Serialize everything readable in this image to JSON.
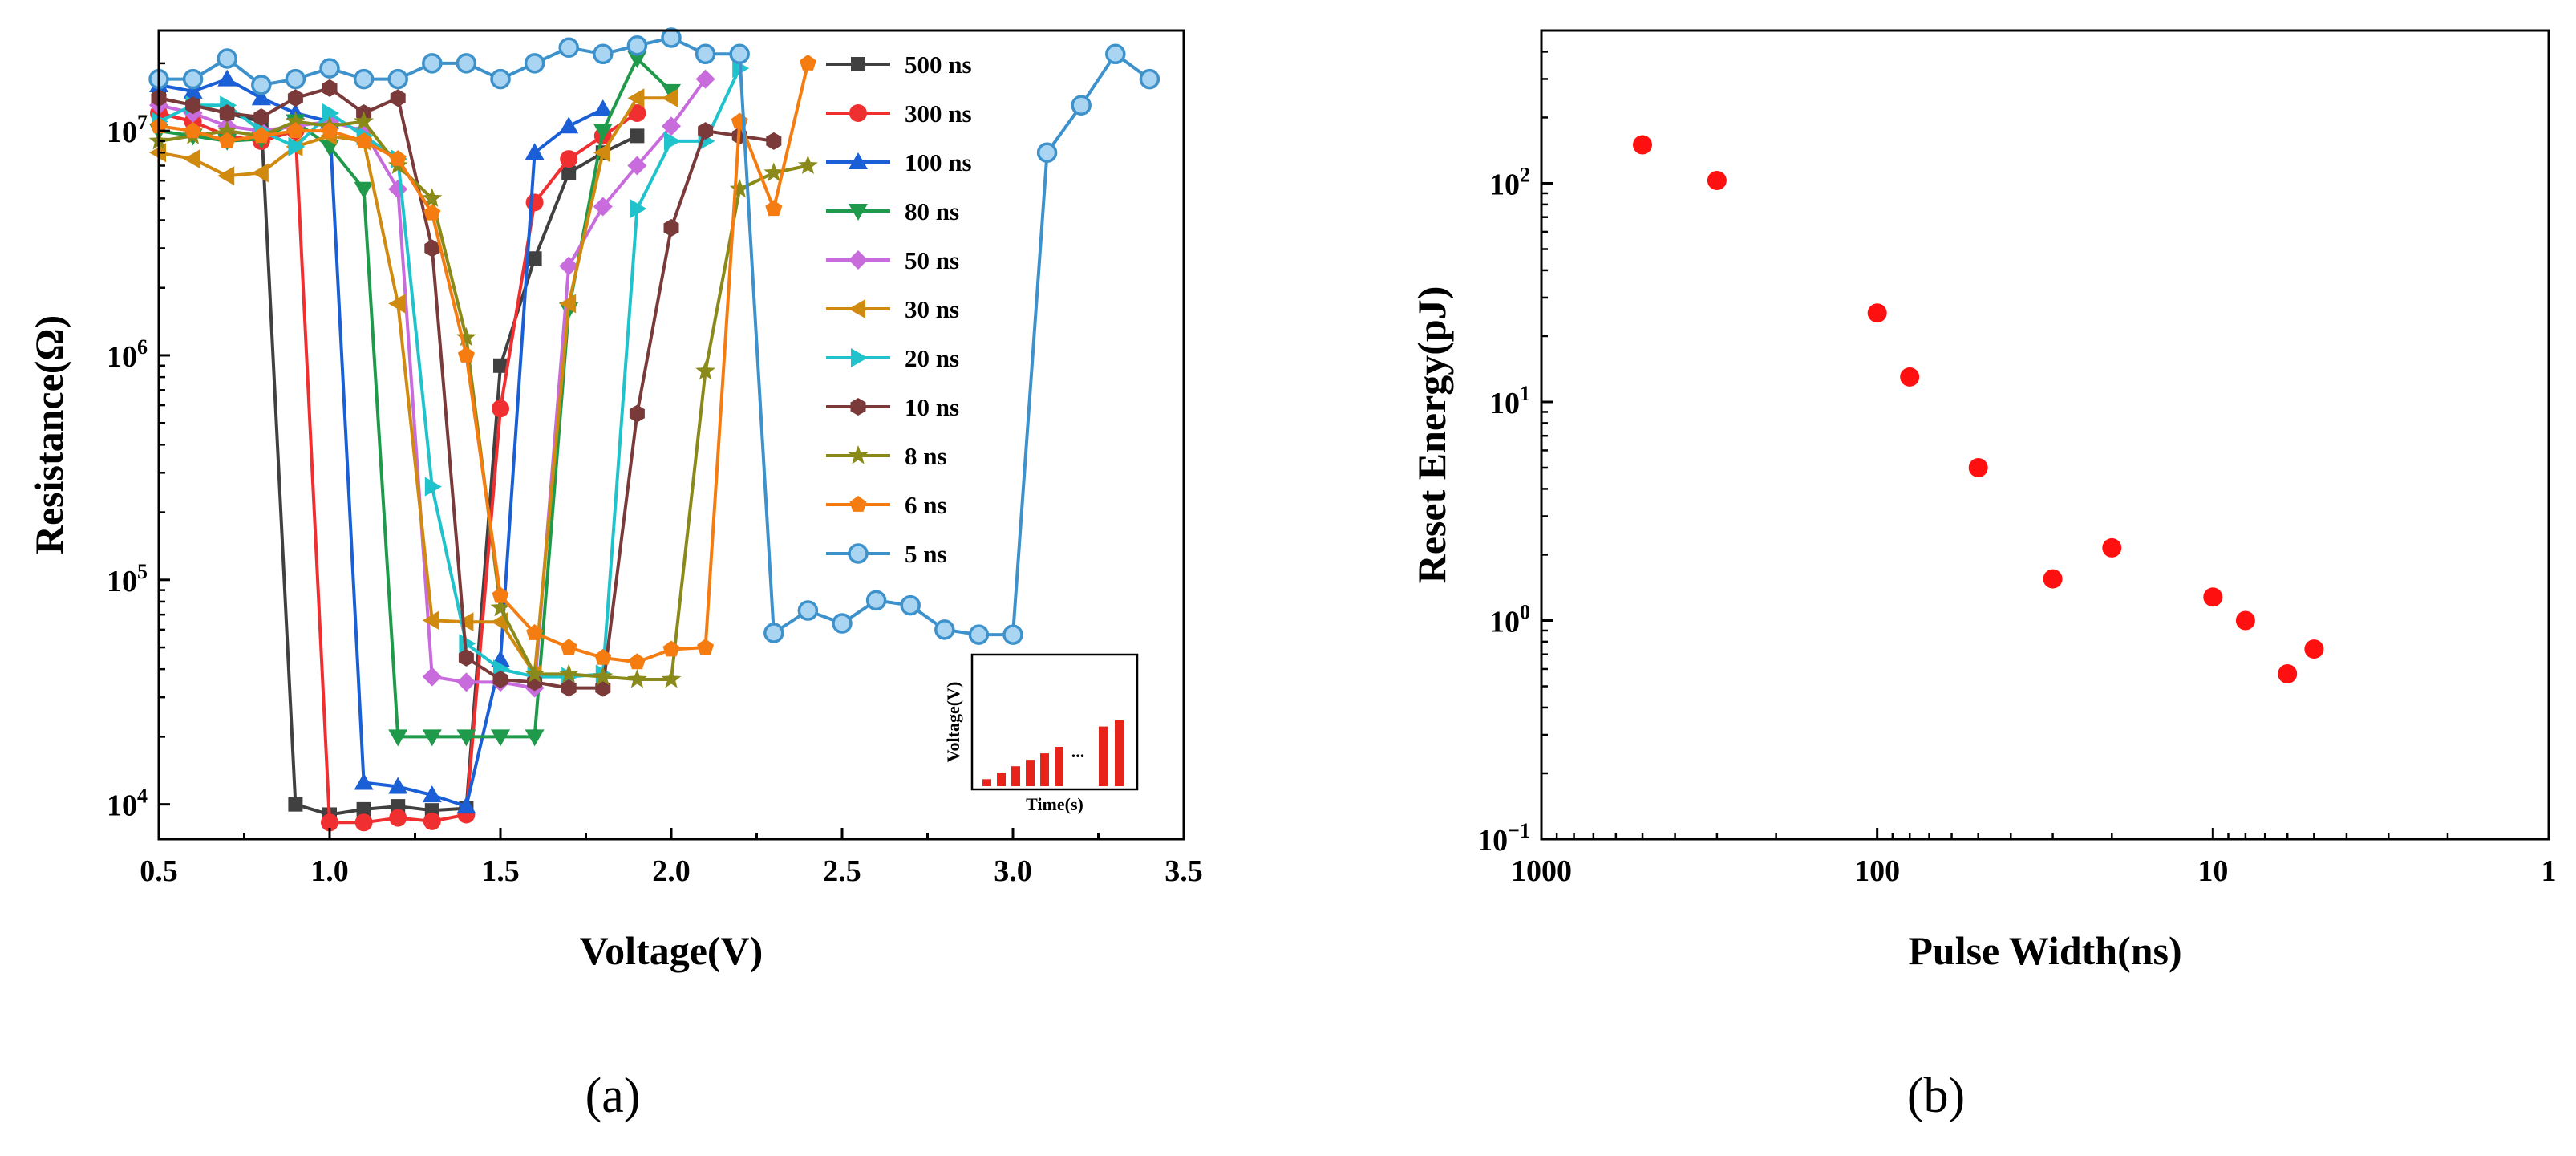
{
  "panels": {
    "a": "(a)",
    "b": "(b)"
  },
  "chart_data": [
    {
      "type": "line",
      "panel": "a",
      "title": "",
      "xlabel": "Voltage(V)",
      "ylabel": "Resistance(Ω)",
      "xlim": [
        0.5,
        3.5
      ],
      "ylim": [
        7000,
        28000000
      ],
      "yscale": "log",
      "xticks": [
        0.5,
        1.0,
        1.5,
        2.0,
        2.5,
        3.0,
        3.5
      ],
      "xtick_labels": [
        "0.5",
        "1.0",
        "1.5",
        "2.0",
        "2.5",
        "3.0",
        "3.5"
      ],
      "yticks": [
        {
          "value": 10000,
          "base": "10",
          "exp": "4"
        },
        {
          "value": 100000,
          "base": "10",
          "exp": "5"
        },
        {
          "value": 1000000,
          "base": "10",
          "exp": "6"
        },
        {
          "value": 10000000,
          "base": "10",
          "exp": "7"
        }
      ],
      "legend_position": "top-right",
      "series": [
        {
          "name": "500 ns",
          "color": "#404040",
          "marker": "square",
          "x": [
            0.5,
            0.6,
            0.7,
            0.8,
            0.9,
            1.0,
            1.1,
            1.2,
            1.3,
            1.4,
            1.5,
            1.6,
            1.7,
            1.8,
            1.9
          ],
          "y": [
            14000000,
            13000000,
            12000000,
            11000000,
            10000,
            9000,
            9500,
            9800,
            9400,
            9600,
            900000,
            2700000,
            6500000,
            8000000,
            9500000
          ]
        },
        {
          "name": "300 ns",
          "color": "#f03030",
          "marker": "circle",
          "x": [
            0.5,
            0.6,
            0.7,
            0.8,
            0.9,
            1.0,
            1.1,
            1.2,
            1.3,
            1.4,
            1.5,
            1.6,
            1.7,
            1.8,
            1.9
          ],
          "y": [
            12000000,
            11000000,
            9500000,
            9000000,
            10000000,
            8300,
            8300,
            8700,
            8400,
            9000,
            580000,
            4800000,
            7500000,
            9500000,
            12000000
          ]
        },
        {
          "name": "100 ns",
          "color": "#1a5fd6",
          "marker": "triangle-up",
          "x": [
            0.5,
            0.6,
            0.7,
            0.8,
            0.9,
            1.0,
            1.1,
            1.2,
            1.3,
            1.4,
            1.5,
            1.6,
            1.7,
            1.8
          ],
          "y": [
            16000000,
            15000000,
            17000000,
            14000000,
            12000000,
            11000000,
            12500,
            12000,
            11000,
            9800,
            44000,
            8000000,
            10500000,
            12500000
          ]
        },
        {
          "name": "80 ns",
          "color": "#1f9a4a",
          "marker": "triangle-down",
          "x": [
            0.5,
            0.6,
            0.7,
            0.8,
            0.9,
            1.0,
            1.1,
            1.2,
            1.3,
            1.4,
            1.5,
            1.6,
            1.7,
            1.8,
            1.9,
            2.0
          ],
          "y": [
            10000000,
            9500000,
            9000000,
            9200000,
            11000000,
            8500000,
            5500000,
            20000,
            20000,
            20000,
            20000,
            20000,
            1600000,
            10000000,
            21000000,
            15000000
          ]
        },
        {
          "name": "50 ns",
          "color": "#c86bdc",
          "marker": "diamond",
          "x": [
            0.5,
            0.6,
            0.7,
            0.8,
            0.9,
            1.0,
            1.1,
            1.2,
            1.3,
            1.4,
            1.5,
            1.6,
            1.7,
            1.8,
            1.9,
            2.0,
            2.1
          ],
          "y": [
            13000000,
            12000000,
            10500000,
            10000000,
            10500000,
            11000000,
            10000000,
            5500000,
            37000,
            35000,
            35000,
            33000,
            2500000,
            4600000,
            7000000,
            10500000,
            17000000
          ]
        },
        {
          "name": "30 ns",
          "color": "#d08a10",
          "marker": "triangle-left",
          "x": [
            0.5,
            0.6,
            0.7,
            0.8,
            0.9,
            1.0,
            1.1,
            1.2,
            1.3,
            1.4,
            1.5,
            1.6,
            1.7,
            1.8,
            1.9,
            2.0
          ],
          "y": [
            8000000,
            7500000,
            6300000,
            6500000,
            8500000,
            9500000,
            9000000,
            1700000,
            66000,
            65000,
            65000,
            38000,
            1700000,
            8000000,
            14000000,
            14000000
          ]
        },
        {
          "name": "20 ns",
          "color": "#20c3cc",
          "marker": "triangle-right",
          "x": [
            0.5,
            0.6,
            0.7,
            0.8,
            0.9,
            1.0,
            1.1,
            1.2,
            1.3,
            1.4,
            1.5,
            1.6,
            1.7,
            1.8,
            1.9,
            2.0,
            2.1,
            2.2
          ],
          "y": [
            11000000,
            13000000,
            13000000,
            10000000,
            8500000,
            12000000,
            9500000,
            7500000,
            260000,
            52000,
            40000,
            37000,
            37000,
            38000,
            4500000,
            9000000,
            9000000,
            19000000
          ]
        },
        {
          "name": "10 ns",
          "color": "#7a3a3a",
          "marker": "hexagon",
          "x": [
            0.5,
            0.6,
            0.7,
            0.8,
            0.9,
            1.0,
            1.1,
            1.2,
            1.3,
            1.4,
            1.5,
            1.6,
            1.7,
            1.8,
            1.9,
            2.0,
            2.1,
            2.2,
            2.3
          ],
          "y": [
            14000000,
            13000000,
            12000000,
            11500000,
            14000000,
            15500000,
            12000000,
            14000000,
            3000000,
            45000,
            36000,
            35000,
            33000,
            33000,
            550000,
            3700000,
            10000000,
            9500000,
            9000000
          ]
        },
        {
          "name": "8 ns",
          "color": "#8a8a1a",
          "marker": "star",
          "x": [
            0.5,
            0.6,
            0.7,
            0.8,
            0.9,
            1.0,
            1.1,
            1.2,
            1.3,
            1.4,
            1.5,
            1.6,
            1.7,
            1.8,
            1.9,
            2.0,
            2.1,
            2.2,
            2.3,
            2.4
          ],
          "y": [
            9000000,
            9500000,
            10000000,
            9500000,
            11000000,
            10500000,
            11000000,
            7000000,
            5000000,
            1200000,
            75000,
            38000,
            38000,
            37000,
            36000,
            36000,
            850000,
            5500000,
            6500000,
            7000000
          ]
        },
        {
          "name": "6 ns",
          "color": "#f57c10",
          "marker": "pentagon",
          "x": [
            0.5,
            0.6,
            0.7,
            0.8,
            0.9,
            1.0,
            1.1,
            1.2,
            1.3,
            1.4,
            1.5,
            1.6,
            1.7,
            1.8,
            1.9,
            2.0,
            2.1,
            2.2,
            2.3,
            2.4
          ],
          "y": [
            10500000,
            10000000,
            9000000,
            9500000,
            10000000,
            10000000,
            9000000,
            7500000,
            4300000,
            1000000,
            85000,
            58000,
            50000,
            45000,
            43000,
            49000,
            50000,
            11000000,
            4500000,
            20000000
          ]
        },
        {
          "name": "5 ns",
          "color": "#3e92cc",
          "marker": "circle-hollow",
          "x": [
            0.5,
            0.6,
            0.7,
            0.8,
            0.9,
            1.0,
            1.1,
            1.2,
            1.3,
            1.4,
            1.5,
            1.6,
            1.7,
            1.8,
            1.9,
            2.0,
            2.1,
            2.2,
            2.3,
            2.4,
            2.5,
            2.6,
            2.7,
            2.8,
            2.9,
            3.0,
            3.1,
            3.2,
            3.3,
            3.4
          ],
          "y": [
            17000000,
            17000000,
            21000000,
            16000000,
            17000000,
            19000000,
            17000000,
            17000000,
            20000000,
            20000000,
            17000000,
            20000000,
            23500000,
            22000000,
            24000000,
            26000000,
            22000000,
            22000000,
            58000,
            73000,
            64000,
            81000,
            77000,
            60000,
            57000,
            57000,
            8000000,
            13000000,
            22000000,
            17000000
          ]
        }
      ],
      "inset": {
        "ylabel": "Voltage(V)",
        "xlabel": "Time(s)",
        "ellipsis": "...",
        "bar_heights": [
          0.14,
          0.27,
          0.4,
          0.53,
          0.66,
          0.79,
          1.2,
          1.33
        ],
        "bar_color": "#e8231a"
      }
    },
    {
      "type": "scatter",
      "panel": "b",
      "title": "",
      "xlabel": "Pulse Width(ns)",
      "ylabel": "Reset Energy(pJ)",
      "xscale": "log",
      "yscale": "log",
      "x_reversed": true,
      "xlim": [
        1000,
        1
      ],
      "ylim": [
        0.1,
        500
      ],
      "xticks": [
        {
          "value": 1000,
          "label": "1000"
        },
        {
          "value": 100,
          "label": "100"
        },
        {
          "value": 10,
          "label": "10"
        },
        {
          "value": 1,
          "label": "1"
        }
      ],
      "yticks": [
        {
          "value": 0.1,
          "base": "10",
          "exp": "−1"
        },
        {
          "value": 1,
          "base": "10",
          "exp": "0"
        },
        {
          "value": 10,
          "base": "10",
          "exp": "1"
        },
        {
          "value": 100,
          "base": "10",
          "exp": "2"
        }
      ],
      "color": "#ff1010",
      "x": [
        500,
        300,
        100,
        80,
        50,
        30,
        20,
        10,
        8,
        6,
        5
      ],
      "y": [
        150,
        103,
        25.5,
        13,
        5,
        1.55,
        2.15,
        1.28,
        1.0,
        0.57,
        0.74
      ]
    }
  ]
}
